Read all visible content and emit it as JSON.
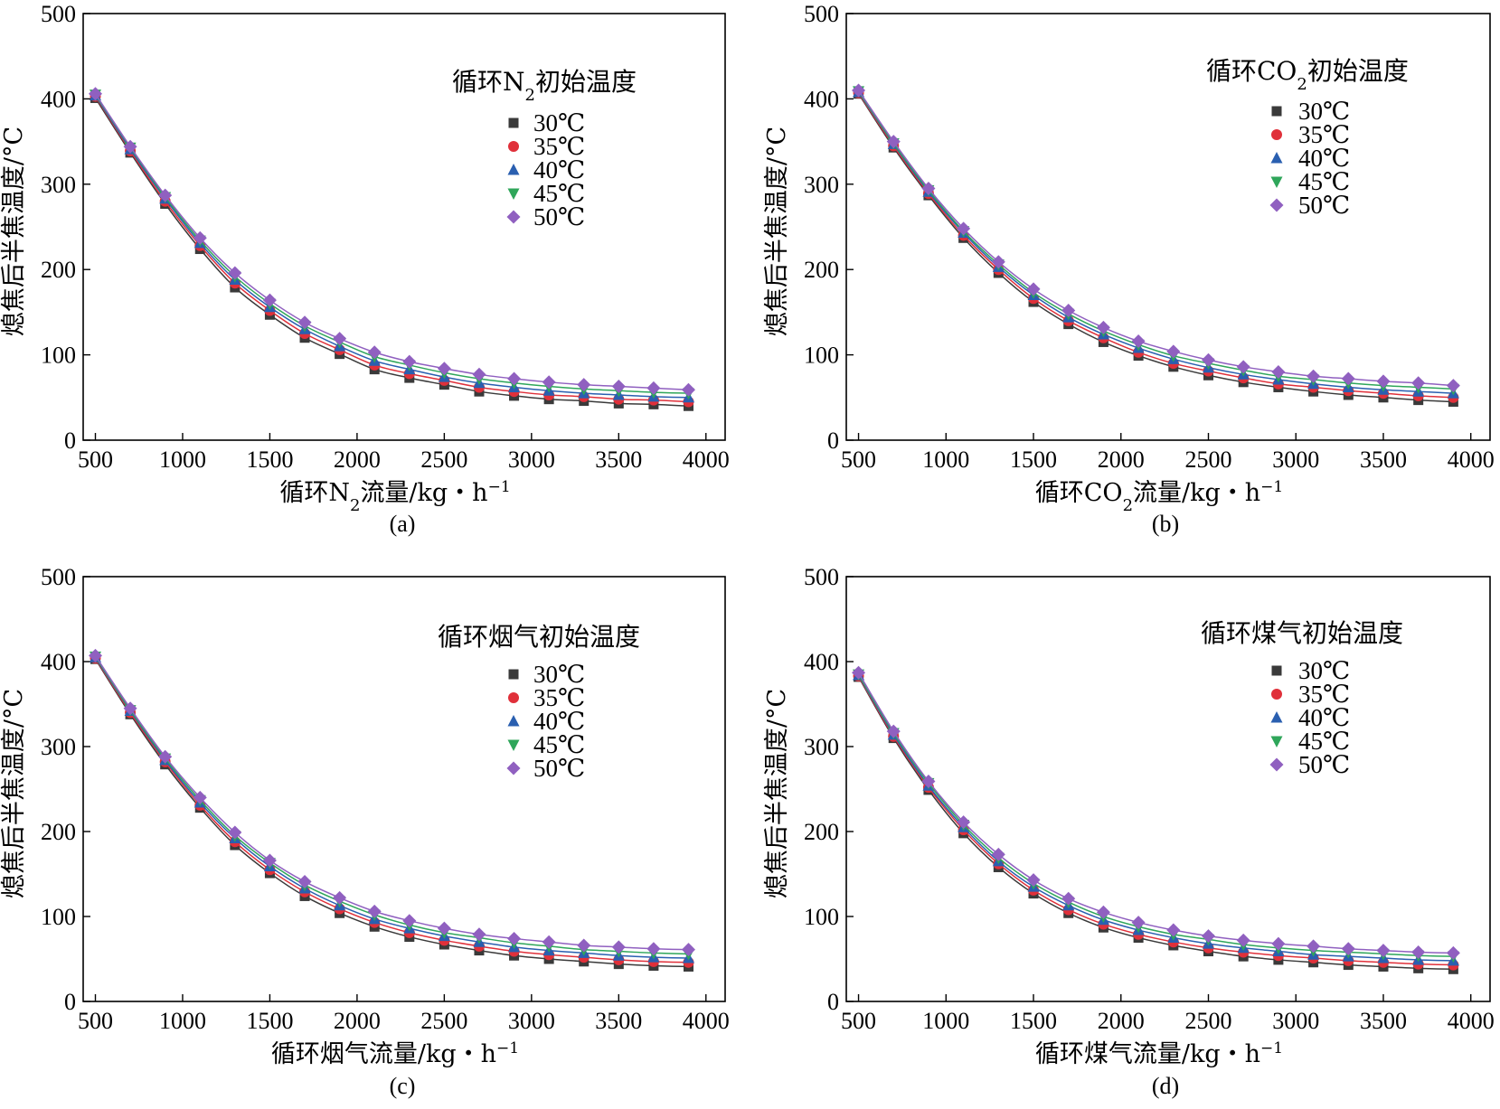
{
  "colors": {
    "30": "#3a3a3a",
    "35": "#e0303a",
    "40": "#2a5fb0",
    "45": "#2fa65a",
    "50": "#9060c0"
  },
  "chart_data": [
    {
      "type": "line",
      "panel": "(a)",
      "ylabel": "熄焦后半焦温度/°C",
      "xlabel_parts": [
        "循环N",
        "2",
        "流量/kg・h",
        "−1"
      ],
      "legend_title_parts": [
        "循环N",
        "2",
        "初始温度"
      ],
      "legend_placement": "top-right",
      "xlim": [
        500,
        4000
      ],
      "ylim": [
        0,
        500
      ],
      "xticks": [
        500,
        1000,
        1500,
        2000,
        2500,
        3000,
        3500,
        4000
      ],
      "yticks": [
        0,
        100,
        200,
        300,
        400,
        500
      ],
      "x": [
        500,
        700,
        900,
        1100,
        1300,
        1500,
        1700,
        1900,
        2100,
        2300,
        2500,
        2700,
        2900,
        3100,
        3300,
        3500,
        3700,
        3900
      ],
      "series": [
        {
          "name": "30℃",
          "marker": "square",
          "color_key": "30",
          "values": [
            401,
            337,
            277,
            224,
            179,
            147,
            120,
            101,
            83,
            73,
            65,
            57,
            52,
            48,
            46,
            43,
            42,
            40
          ]
        },
        {
          "name": "35℃",
          "marker": "circle",
          "color_key": "35",
          "values": [
            403,
            339,
            280,
            228,
            184,
            152,
            125,
            106,
            88,
            78,
            70,
            62,
            57,
            53,
            51,
            48,
            47,
            45
          ]
        },
        {
          "name": "40℃",
          "marker": "triangle-up",
          "color_key": "40",
          "values": [
            404,
            341,
            283,
            231,
            188,
            156,
            130,
            110,
            93,
            83,
            74,
            67,
            62,
            58,
            55,
            53,
            51,
            50
          ]
        },
        {
          "name": "45℃",
          "marker": "triangle-down",
          "color_key": "45",
          "values": [
            405,
            343,
            285,
            234,
            192,
            160,
            134,
            115,
            98,
            88,
            79,
            72,
            67,
            63,
            60,
            58,
            56,
            55
          ]
        },
        {
          "name": "50℃",
          "marker": "diamond",
          "color_key": "50",
          "values": [
            406,
            344,
            287,
            237,
            196,
            164,
            138,
            119,
            103,
            92,
            84,
            77,
            72,
            68,
            65,
            63,
            61,
            59
          ]
        }
      ]
    },
    {
      "type": "line",
      "panel": "(b)",
      "ylabel": "熄焦后半焦温度/°C",
      "xlabel_parts": [
        "循环CO",
        "2",
        "流量/kg・h",
        "−1"
      ],
      "legend_title_parts": [
        "循环CO",
        "2",
        "初始温度"
      ],
      "legend_placement": "top-right",
      "xlim": [
        500,
        4000
      ],
      "ylim": [
        0,
        500
      ],
      "xticks": [
        500,
        1000,
        1500,
        2000,
        2500,
        3000,
        3500,
        4000
      ],
      "yticks": [
        0,
        100,
        200,
        300,
        400,
        500
      ],
      "x": [
        500,
        700,
        900,
        1100,
        1300,
        1500,
        1700,
        1900,
        2100,
        2300,
        2500,
        2700,
        2900,
        3100,
        3300,
        3500,
        3700,
        3900
      ],
      "series": [
        {
          "name": "30℃",
          "marker": "square",
          "color_key": "30",
          "values": [
            406,
            343,
            287,
            237,
            196,
            162,
            136,
            115,
            99,
            86,
            76,
            68,
            62,
            57,
            53,
            50,
            47,
            45
          ]
        },
        {
          "name": "35℃",
          "marker": "circle",
          "color_key": "35",
          "values": [
            407,
            345,
            289,
            240,
            200,
            166,
            140,
            120,
            103,
            90,
            81,
            73,
            66,
            62,
            58,
            55,
            52,
            50
          ]
        },
        {
          "name": "40℃",
          "marker": "triangle-up",
          "color_key": "40",
          "values": [
            408,
            347,
            291,
            243,
            203,
            170,
            144,
            124,
            108,
            95,
            85,
            77,
            71,
            66,
            62,
            59,
            57,
            55
          ]
        },
        {
          "name": "45℃",
          "marker": "triangle-down",
          "color_key": "45",
          "values": [
            409,
            348,
            293,
            245,
            206,
            173,
            148,
            128,
            112,
            99,
            90,
            82,
            75,
            71,
            67,
            64,
            62,
            60
          ]
        },
        {
          "name": "50℃",
          "marker": "diamond",
          "color_key": "50",
          "values": [
            410,
            350,
            295,
            248,
            209,
            177,
            152,
            132,
            116,
            104,
            94,
            86,
            80,
            75,
            72,
            69,
            67,
            64
          ]
        }
      ]
    },
    {
      "type": "line",
      "panel": "(c)",
      "ylabel": "熄焦后半焦温度/°C",
      "xlabel_parts": [
        "循环烟气流量/kg・h",
        "",
        "",
        "−1"
      ],
      "legend_title_parts": [
        "循环烟气初始温度",
        "",
        ""
      ],
      "legend_placement": "top-right",
      "xlim": [
        500,
        4000
      ],
      "ylim": [
        0,
        500
      ],
      "xticks": [
        500,
        1000,
        1500,
        2000,
        2500,
        3000,
        3500,
        4000
      ],
      "yticks": [
        0,
        100,
        200,
        300,
        400,
        500
      ],
      "x": [
        500,
        700,
        900,
        1100,
        1300,
        1500,
        1700,
        1900,
        2100,
        2300,
        2500,
        2700,
        2900,
        3100,
        3300,
        3500,
        3700,
        3900
      ],
      "series": [
        {
          "name": "30℃",
          "marker": "square",
          "color_key": "30",
          "values": [
            403,
            338,
            279,
            228,
            184,
            151,
            124,
            104,
            88,
            76,
            67,
            60,
            54,
            50,
            47,
            44,
            42,
            41
          ]
        },
        {
          "name": "35℃",
          "marker": "circle",
          "color_key": "35",
          "values": [
            404,
            340,
            282,
            231,
            188,
            155,
            129,
            109,
            93,
            81,
            72,
            65,
            59,
            55,
            52,
            49,
            47,
            46
          ]
        },
        {
          "name": "40℃",
          "marker": "triangle-up",
          "color_key": "40",
          "values": [
            405,
            342,
            284,
            234,
            192,
            159,
            133,
            113,
            97,
            86,
            77,
            70,
            64,
            60,
            57,
            54,
            52,
            51
          ]
        },
        {
          "name": "45℃",
          "marker": "triangle-down",
          "color_key": "45",
          "values": [
            406,
            343,
            286,
            237,
            195,
            163,
            137,
            118,
            102,
            90,
            81,
            75,
            69,
            65,
            61,
            59,
            57,
            56
          ]
        },
        {
          "name": "50℃",
          "marker": "diamond",
          "color_key": "50",
          "values": [
            407,
            345,
            288,
            240,
            199,
            166,
            141,
            122,
            106,
            95,
            86,
            79,
            74,
            70,
            66,
            64,
            62,
            61
          ]
        }
      ]
    },
    {
      "type": "line",
      "panel": "(d)",
      "ylabel": "熄焦后半焦温度/°C",
      "xlabel_parts": [
        "循环煤气流量/kg・h",
        "",
        "",
        "−1"
      ],
      "legend_title_parts": [
        "循环煤气初始温度",
        "",
        ""
      ],
      "legend_placement": "top-right",
      "xlim": [
        500,
        4000
      ],
      "ylim": [
        0,
        500
      ],
      "xticks": [
        500,
        1000,
        1500,
        2000,
        2500,
        3000,
        3500,
        4000
      ],
      "yticks": [
        0,
        100,
        200,
        300,
        400,
        500
      ],
      "x": [
        500,
        700,
        900,
        1100,
        1300,
        1500,
        1700,
        1900,
        2100,
        2300,
        2500,
        2700,
        2900,
        3100,
        3300,
        3500,
        3700,
        3900
      ],
      "series": [
        {
          "name": "30℃",
          "marker": "square",
          "color_key": "30",
          "values": [
            382,
            310,
            249,
            198,
            158,
            127,
            104,
            87,
            75,
            66,
            59,
            53,
            49,
            46,
            43,
            41,
            39,
            38
          ]
        },
        {
          "name": "35℃",
          "marker": "circle",
          "color_key": "35",
          "values": [
            383,
            312,
            252,
            202,
            162,
            131,
            108,
            91,
            79,
            70,
            63,
            58,
            54,
            51,
            48,
            46,
            44,
            43
          ]
        },
        {
          "name": "40℃",
          "marker": "triangle-up",
          "color_key": "40",
          "values": [
            384,
            314,
            254,
            205,
            165,
            135,
            113,
            96,
            84,
            75,
            68,
            63,
            59,
            55,
            53,
            51,
            49,
            48
          ]
        },
        {
          "name": "45℃",
          "marker": "triangle-down",
          "color_key": "45",
          "values": [
            385,
            316,
            257,
            208,
            169,
            139,
            117,
            100,
            88,
            79,
            73,
            67,
            63,
            60,
            58,
            56,
            54,
            53
          ]
        },
        {
          "name": "50℃",
          "marker": "diamond",
          "color_key": "50",
          "values": [
            387,
            318,
            259,
            211,
            173,
            143,
            121,
            105,
            93,
            84,
            77,
            72,
            68,
            65,
            62,
            60,
            58,
            57
          ]
        }
      ]
    }
  ]
}
